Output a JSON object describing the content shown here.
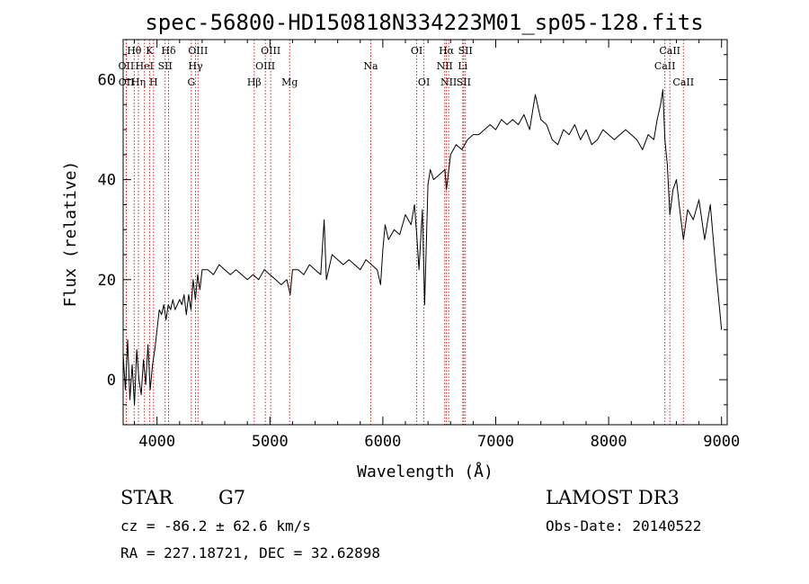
{
  "chart_data": {
    "type": "line",
    "title": "spec-56800-HD150818N334223M01_sp05-128.fits",
    "xlabel": "Wavelength (Å)",
    "ylabel": "Flux (relative)",
    "xlim": [
      3700,
      9050
    ],
    "ylim": [
      -9,
      68
    ],
    "xticks": [
      4000,
      5000,
      6000,
      7000,
      8000,
      9000
    ],
    "yticks": [
      0,
      20,
      40,
      60
    ],
    "grid": false,
    "line_color": "#000000",
    "marker_color": "#cc2222",
    "spectral_lines": [
      {
        "name": "Hθ",
        "wave": 3798,
        "row": 0
      },
      {
        "name": "OII",
        "wave": 3727,
        "row": 1
      },
      {
        "name": "OII",
        "wave": 3729,
        "row": 2
      },
      {
        "name": "Hη",
        "wave": 3835,
        "row": 2
      },
      {
        "name": "HeI",
        "wave": 3889,
        "row": 1
      },
      {
        "name": "K",
        "wave": 3934,
        "row": 0
      },
      {
        "name": "H",
        "wave": 3969,
        "row": 2
      },
      {
        "name": "SII",
        "wave": 4072,
        "row": 1
      },
      {
        "name": "Hδ",
        "wave": 4102,
        "row": 0
      },
      {
        "name": "OIII",
        "wave": 4363,
        "row": 0
      },
      {
        "name": "Hγ",
        "wave": 4341,
        "row": 1
      },
      {
        "name": "G",
        "wave": 4304,
        "row": 2
      },
      {
        "name": "Hβ",
        "wave": 4861,
        "row": 2
      },
      {
        "name": "OIII",
        "wave": 4959,
        "row": 1
      },
      {
        "name": "OIII",
        "wave": 5007,
        "row": 0
      },
      {
        "name": "Mg",
        "wave": 5175,
        "row": 2
      },
      {
        "name": "Na",
        "wave": 5893,
        "row": 1
      },
      {
        "name": "OI",
        "wave": 6300,
        "row": 0
      },
      {
        "name": "OI",
        "wave": 6364,
        "row": 2
      },
      {
        "name": "NII",
        "wave": 6548,
        "row": 1
      },
      {
        "name": "Hα",
        "wave": 6563,
        "row": 0
      },
      {
        "name": "NII",
        "wave": 6583,
        "row": 2
      },
      {
        "name": "Li",
        "wave": 6708,
        "row": 1
      },
      {
        "name": "SII",
        "wave": 6716,
        "row": 2
      },
      {
        "name": "SII",
        "wave": 6731,
        "row": 0
      },
      {
        "name": "CaII",
        "wave": 8498,
        "row": 1
      },
      {
        "name": "CaII",
        "wave": 8542,
        "row": 0
      },
      {
        "name": "CaII",
        "wave": 8662,
        "row": 2
      }
    ],
    "series": [
      {
        "x": [
          3700,
          3720,
          3740,
          3760,
          3780,
          3800,
          3820,
          3840,
          3860,
          3880,
          3900,
          3920,
          3940,
          3960,
          3980,
          4000,
          4020,
          4040,
          4060,
          4080,
          4100,
          4120,
          4140,
          4160,
          4180,
          4200,
          4220,
          4240,
          4260,
          4280,
          4300,
          4320,
          4340,
          4360,
          4380,
          4400,
          4450,
          4500,
          4550,
          4600,
          4650,
          4700,
          4750,
          4800,
          4850,
          4900,
          4950,
          5000,
          5050,
          5100,
          5150,
          5180,
          5200,
          5250,
          5300,
          5350,
          5400,
          5450,
          5480,
          5500,
          5550,
          5600,
          5650,
          5700,
          5750,
          5800,
          5850,
          5900,
          5950,
          5980,
          6000,
          6020,
          6050,
          6100,
          6150,
          6200,
          6250,
          6280,
          6300,
          6320,
          6350,
          6370,
          6400,
          6420,
          6450,
          6500,
          6550,
          6563,
          6600,
          6650,
          6700,
          6750,
          6800,
          6850,
          6900,
          6950,
          7000,
          7050,
          7100,
          7150,
          7200,
          7250,
          7300,
          7350,
          7400,
          7450,
          7500,
          7550,
          7600,
          7650,
          7700,
          7750,
          7800,
          7850,
          7900,
          7950,
          8000,
          8050,
          8100,
          8150,
          8200,
          8250,
          8300,
          8350,
          8400,
          8430,
          8460,
          8480,
          8498,
          8520,
          8542,
          8570,
          8600,
          8630,
          8662,
          8700,
          8750,
          8800,
          8850,
          8900,
          8950,
          9000
        ],
        "y": [
          5,
          -2,
          8,
          -4,
          3,
          -5,
          6,
          0,
          -3,
          4,
          -1,
          7,
          -2,
          3,
          6,
          10,
          14,
          13,
          15,
          12,
          15,
          14,
          16,
          14,
          15,
          16,
          15,
          17,
          13,
          17,
          14,
          20,
          16,
          21,
          18,
          22,
          22,
          21,
          23,
          22,
          21,
          22,
          21,
          20,
          21,
          20,
          22,
          21,
          20,
          19,
          20,
          17,
          22,
          22,
          21,
          23,
          22,
          21,
          32,
          20,
          25,
          24,
          23,
          24,
          23,
          22,
          24,
          23,
          22,
          19,
          26,
          31,
          28,
          30,
          29,
          33,
          31,
          35,
          29,
          22,
          34,
          15,
          39,
          42,
          40,
          41,
          42,
          38,
          45,
          47,
          46,
          48,
          49,
          49,
          50,
          51,
          50,
          52,
          51,
          52,
          51,
          53,
          50,
          57,
          52,
          51,
          48,
          47,
          50,
          49,
          51,
          48,
          50,
          47,
          48,
          50,
          49,
          48,
          49,
          50,
          49,
          48,
          46,
          49,
          48,
          52,
          55,
          58,
          48,
          43,
          33,
          38,
          40,
          34,
          28,
          34,
          32,
          36,
          28,
          35,
          22,
          10
        ]
      }
    ]
  },
  "info": {
    "obj_class": "STAR",
    "subclass": "G7",
    "survey": "LAMOST DR3",
    "cz": "cz = -86.2 ± 62.6 km/s",
    "obs_date": "Obs-Date: 20140522",
    "radec": "RA = 227.18721, DEC =  32.62898"
  }
}
